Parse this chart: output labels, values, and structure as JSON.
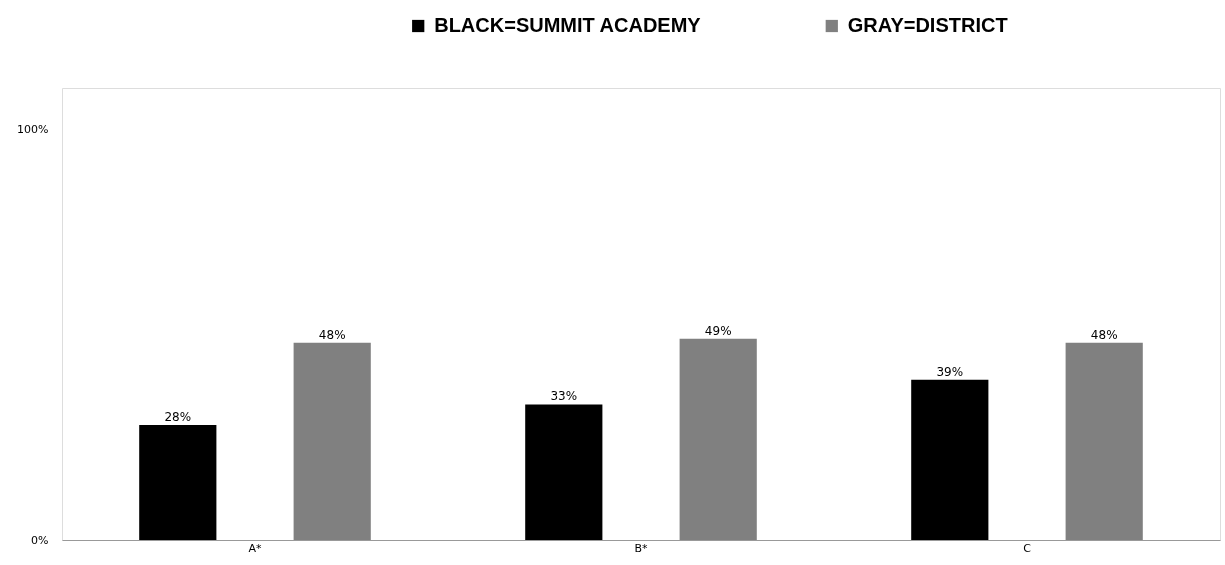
{
  "chart_data": {
    "type": "bar",
    "categories": [
      "A*",
      "B*",
      "C"
    ],
    "series": [
      {
        "name": "BLACK=SUMMIT ACADEMY",
        "color": "#000000",
        "values": [
          28,
          33,
          39
        ],
        "value_labels": [
          "28%",
          "33%",
          "39%"
        ]
      },
      {
        "name": "GRAY=DISTRICT",
        "color": "#808080",
        "values": [
          48,
          49,
          48
        ],
        "value_labels": [
          "48%",
          "49%",
          "48%"
        ]
      }
    ],
    "ylim": [
      0,
      110
    ],
    "yticks": [
      {
        "value": 0,
        "label": "0%"
      },
      {
        "value": 100,
        "label": "100%"
      }
    ],
    "grid": false,
    "legend": "top"
  }
}
